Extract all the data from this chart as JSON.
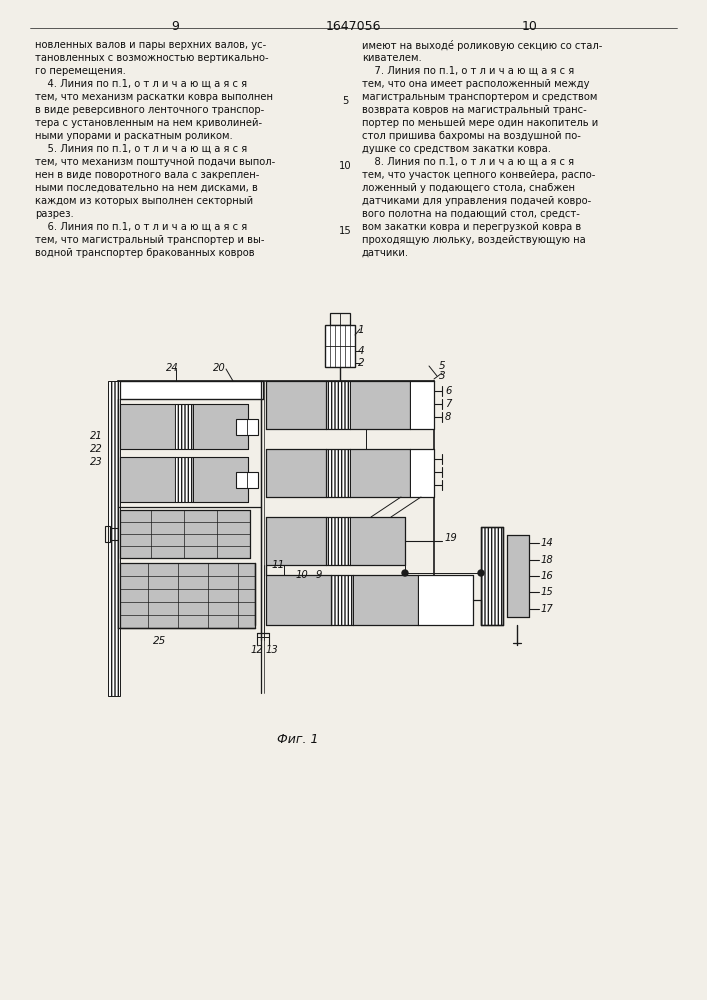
{
  "bg_color": "#f2efe8",
  "line_color": "#1a1a1a",
  "text_color": "#111111",
  "page_left": "9",
  "page_center": "1647056",
  "page_right": "10",
  "fig_label": "Фиг. 1",
  "left_text": [
    "новленных валов и пары верхних валов, ус-",
    "тановленных с возможностью вертикально-",
    "го перемещения.",
    "    4. Линия по п.1, о т л и ч а ю щ а я с я",
    "тем, что механизм раскатки ковра выполнен",
    "в виде реверсивного ленточного транспор-",
    "тера с установленным на нем криволиней-",
    "ными упорами и раскатным роликом.",
    "    5. Линия по п.1, о т л и ч а ю щ а я с я",
    "тем, что механизм поштучной подачи выпол-",
    "нен в виде поворотного вала с закреплен-",
    "ными последовательно на нем дисками, в",
    "каждом из которых выполнен секторный",
    "разрез.",
    "    6. Линия по п.1, о т л и ч а ю щ а я с я",
    "тем, что магистральный транспортер и вы-",
    "водной транспортер бракованных ковров"
  ],
  "right_text": [
    "имеют на выходе́ роликовую секцию со стал-",
    "кивателем.",
    "    7. Линия по п.1, о т л и ч а ю щ а я с я",
    "тем, что она имеет расположенный между",
    "магистральным транспортером и средством",
    "возврата ковров на магистральный транс-",
    "портер по меньшей мере один накопитель и",
    "стол пришива бахромы на воздушной по-",
    "душке со средством закатки ковра.",
    "    8. Линия по п.1, о т л и ч а ю щ а я с я",
    "тем, что участок цепного конвейера, распо-",
    "ложенный у подающего стола, снабжен",
    "датчиками для управления подачей ковро-",
    "вого полотна на подающий стол, средст-",
    "вом закатки ковра и перегрузкой ковра в",
    "проходящую люльку, воздействующую на",
    "датчики."
  ]
}
